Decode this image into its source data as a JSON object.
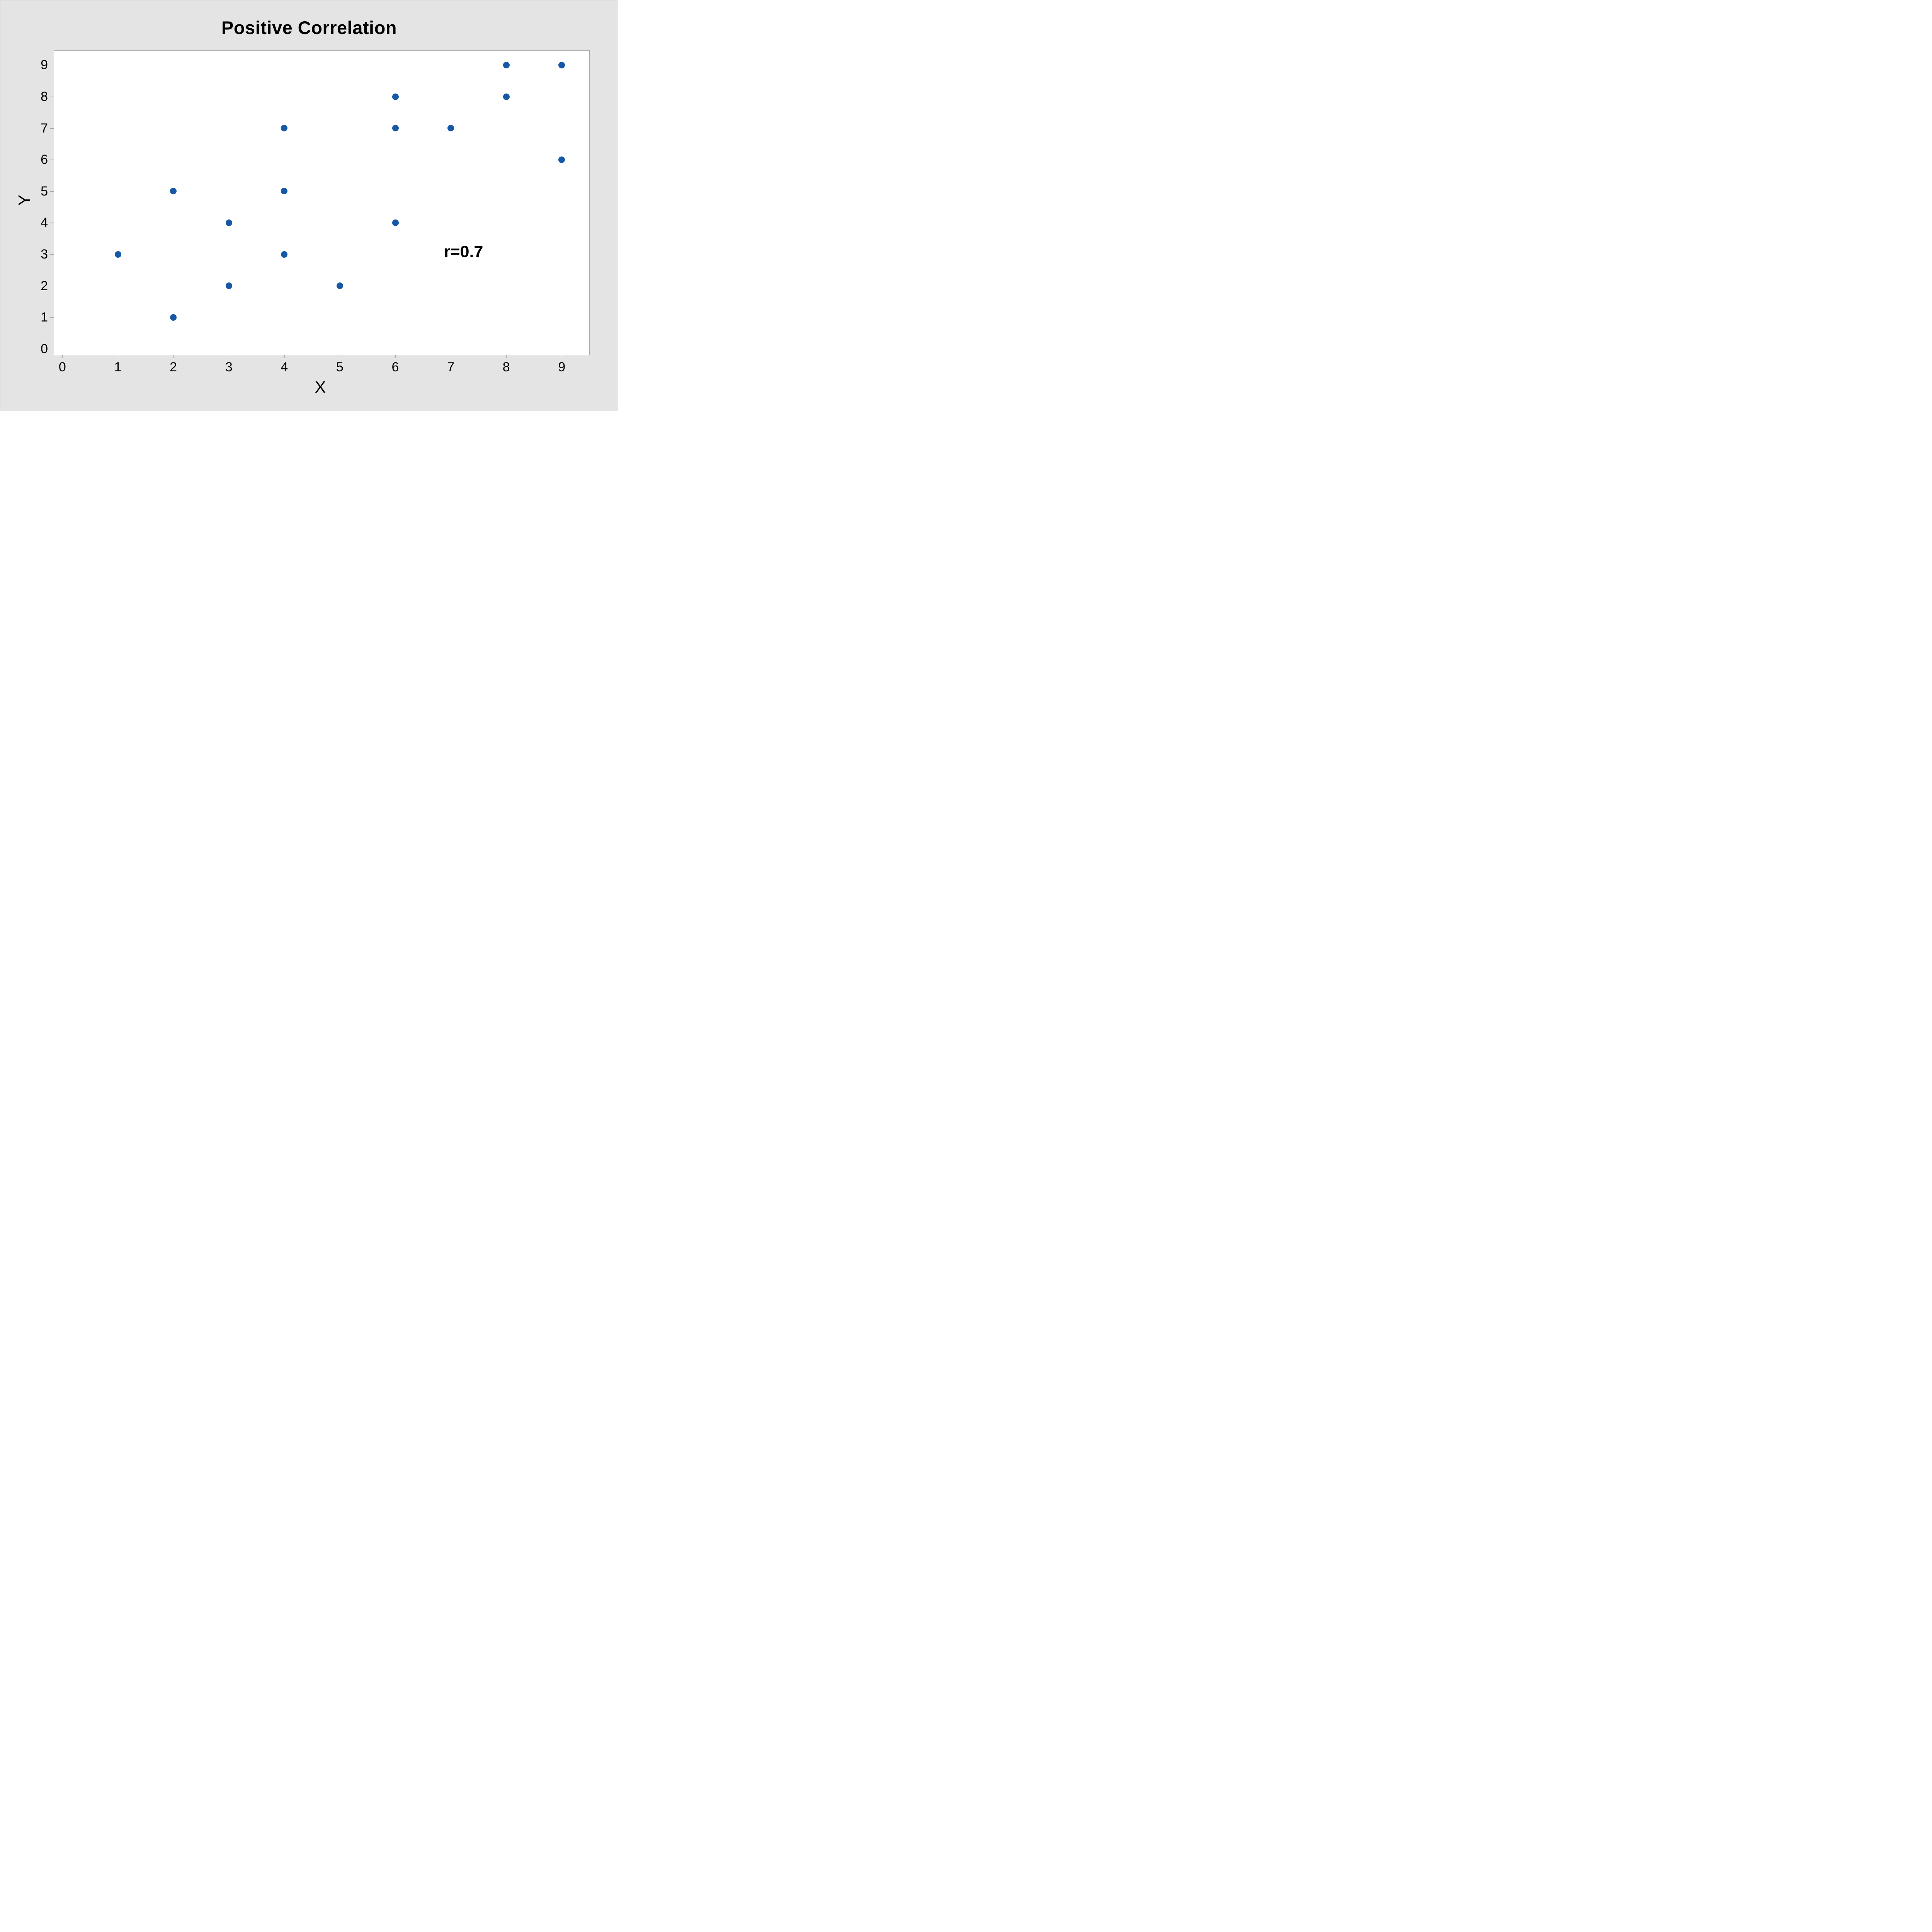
{
  "chart_data": {
    "type": "scatter",
    "title": "Positive Correlation",
    "xlabel": "X",
    "ylabel": "Y",
    "annotation": {
      "text": "r=0.7",
      "x": 7.23,
      "y": 3.07
    },
    "x_ticks": [
      0,
      1,
      2,
      3,
      4,
      5,
      6,
      7,
      8,
      9
    ],
    "y_ticks": [
      0,
      1,
      2,
      3,
      4,
      5,
      6,
      7,
      8,
      9
    ],
    "xlim": [
      -0.16,
      9.49
    ],
    "ylim": [
      -0.17,
      9.47
    ],
    "grid": false,
    "legend": "none",
    "points": [
      [
        1,
        3
      ],
      [
        2,
        1
      ],
      [
        2,
        5
      ],
      [
        3,
        2
      ],
      [
        3,
        4
      ],
      [
        4,
        3
      ],
      [
        4,
        5
      ],
      [
        4,
        7
      ],
      [
        5,
        2
      ],
      [
        6,
        4
      ],
      [
        6,
        7
      ],
      [
        6,
        8
      ],
      [
        7,
        7
      ],
      [
        8,
        8
      ],
      [
        8,
        9
      ],
      [
        9,
        6
      ],
      [
        9,
        9
      ]
    ],
    "marker_color": "#1658a5",
    "marker_diameter_px": 17
  },
  "page": {
    "background_color": "#e4e4e4",
    "plot_background_color": "#ffffff",
    "frame_color": "#a6a6a6",
    "outer_border_color": "#c9c9c9",
    "text_color": "#000000"
  }
}
